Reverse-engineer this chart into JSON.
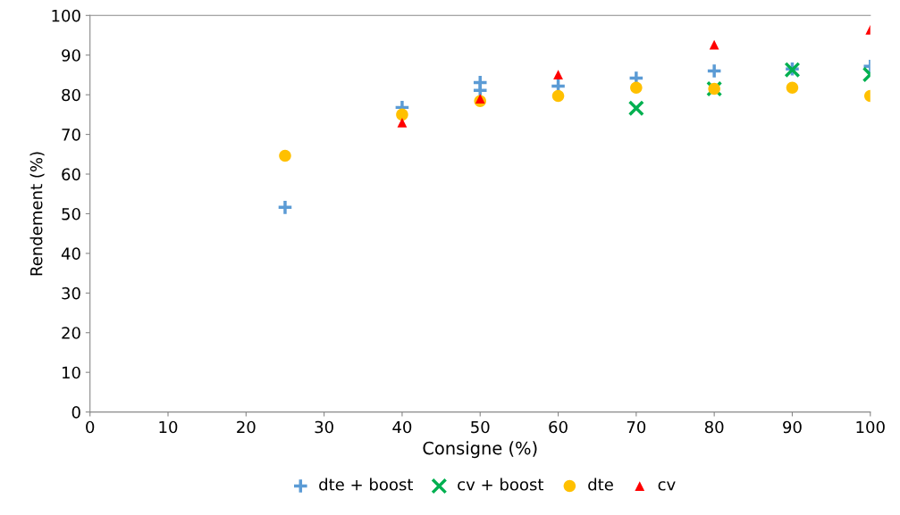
{
  "chart_data": {
    "type": "scatter",
    "xlabel": "Consigne (%)",
    "ylabel": "Rendement (%)",
    "xlim": [
      0,
      100
    ],
    "xticks": [
      0,
      10,
      20,
      30,
      40,
      50,
      60,
      70,
      80,
      90,
      100
    ],
    "ylim": [
      0,
      100
    ],
    "yticks": [
      0,
      10,
      20,
      30,
      40,
      50,
      60,
      70,
      80,
      90,
      100
    ],
    "grid": false,
    "legend": "bottom",
    "series": [
      {
        "name": "dte + boost",
        "color": "#5b9bd5",
        "marker": "plus",
        "x": [
          25,
          40,
          50,
          50,
          60,
          70,
          80,
          90,
          100
        ],
        "values": [
          51.6,
          76.8,
          83.1,
          81.1,
          82.2,
          84.2,
          86.0,
          86.5,
          87.2
        ]
      },
      {
        "name": "cv + boost",
        "color": "#00b050",
        "marker": "cross",
        "x": [
          70,
          80,
          90,
          100
        ],
        "values": [
          76.6,
          81.5,
          86.3,
          85.1
        ]
      },
      {
        "name": "dte",
        "color": "#ffc000",
        "marker": "circle",
        "x": [
          25,
          40,
          50,
          60,
          70,
          80,
          90,
          100
        ],
        "values": [
          64.6,
          75.0,
          78.4,
          79.7,
          81.8,
          81.5,
          81.8,
          79.7
        ]
      },
      {
        "name": "cv",
        "color": "#ff0000",
        "marker": "triangle",
        "x": [
          40,
          50,
          60,
          80,
          100
        ],
        "values": [
          73.0,
          79.0,
          85.1,
          92.6,
          96.4
        ]
      }
    ]
  }
}
